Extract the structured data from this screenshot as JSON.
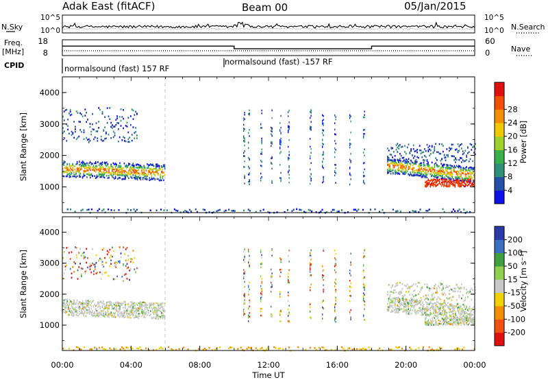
{
  "header": {
    "station": "Adak East (fitACF)",
    "beam": "Beam 00",
    "date": "05/Jan/2015"
  },
  "side_labels": {
    "nsky": "N.Sky",
    "nsearch": "N.Search",
    "freq_line1": "Freq.",
    "freq_line2": "[MHz]",
    "nave": "Nave",
    "cpid": "CPID"
  },
  "noise_panel": {
    "left_ticks": [
      "10^5",
      "10^0"
    ],
    "right_ticks": [
      "10^5",
      "10^0"
    ]
  },
  "freq_panel": {
    "left_ticks": [
      "18",
      "8"
    ],
    "right_ticks": [
      "60",
      "0"
    ],
    "segments": [
      {
        "start_h": 0,
        "end_h": 10,
        "freq_mhz": 14.0
      },
      {
        "start_h": 10,
        "end_h": 18,
        "freq_mhz": 12.3
      },
      {
        "start_h": 18,
        "end_h": 24,
        "freq_mhz": 14.0
      }
    ]
  },
  "cpid_labels": [
    "normalsound (fast) 157 RF",
    "normalsound (fast) -157 RF"
  ],
  "chart_data": [
    {
      "type": "heatmap",
      "panel": "power",
      "ylabel": "Slant Range [km]",
      "xlabel": "",
      "x_range_h": [
        0,
        24
      ],
      "y_range_km": [
        180,
        4500
      ],
      "y_ticks": [
        "1000",
        "2000",
        "3000",
        "4000"
      ],
      "colorbar_label": "Power [dB]",
      "colorbar_ticks": [
        "4",
        "8",
        "12",
        "16",
        "20",
        "24",
        "28"
      ],
      "colorbar_colors": [
        "#1010e8",
        "#2450a8",
        "#2f8f78",
        "#3ab04a",
        "#a0d030",
        "#f0c800",
        "#f09000",
        "#f05000",
        "#e01010"
      ]
    },
    {
      "type": "heatmap",
      "panel": "velocity",
      "ylabel": "Slant Range [km]",
      "xlabel": "Time UT",
      "x_range_h": [
        0,
        24
      ],
      "y_range_km": [
        180,
        4500
      ],
      "y_ticks": [
        "1000",
        "2000",
        "3000",
        "4000"
      ],
      "x_ticks": [
        "00:00",
        "04:00",
        "08:00",
        "12:00",
        "16:00",
        "20:00",
        "00:00"
      ],
      "colorbar_label": "Velocity [m s⁻¹]",
      "colorbar_ticks": [
        "200",
        "100",
        "50",
        "15",
        "-15",
        "-50",
        "-100",
        "-200"
      ],
      "colorbar_colors": [
        "#2a3aa8",
        "#3a70c0",
        "#40a040",
        "#90d050",
        "#c8c8c8",
        "#f0d000",
        "#f09000",
        "#f05010",
        "#e01010"
      ]
    }
  ]
}
